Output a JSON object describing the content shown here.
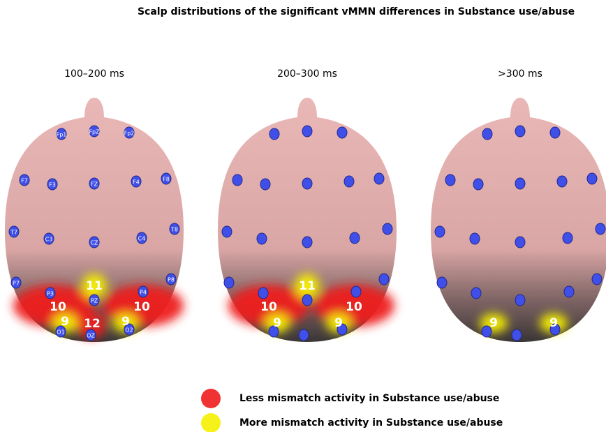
{
  "title": "Scalp distributions of the significant vMMN differences in Substance use/abuse",
  "panels": [
    {
      "label": "100–200 ms",
      "electrodes": [
        "Fp1",
        "FpZ",
        "Fp2",
        "F7",
        "F3",
        "FZ",
        "F4",
        "F8",
        "T7",
        "C3",
        "CZ",
        "C4",
        "T8",
        "P7",
        "P3",
        "PZ",
        "P4",
        "P8",
        "O1",
        "OZ",
        "O2"
      ],
      "blobs": [
        {
          "value": 10,
          "color": "#ee1c1c"
        },
        {
          "value": 10,
          "color": "#ee1c1c"
        },
        {
          "value": 12,
          "color": "#ee1c1c"
        },
        {
          "value": 11,
          "color": "#f5f000"
        },
        {
          "value": 9,
          "color": "#f5f000"
        },
        {
          "value": 9,
          "color": "#f5f000"
        }
      ]
    },
    {
      "label": "200–300 ms",
      "blobs": [
        {
          "value": 10,
          "color": "#ee1c1c"
        },
        {
          "value": 10,
          "color": "#ee1c1c"
        },
        {
          "value": 11,
          "color": "#f5f000"
        },
        {
          "value": 9,
          "color": "#f5f000"
        },
        {
          "value": 9,
          "color": "#f5f000"
        }
      ]
    },
    {
      "label": ">300 ms",
      "blobs": [
        {
          "value": 9,
          "color": "#f5f000"
        },
        {
          "value": 9,
          "color": "#f5f000"
        }
      ]
    }
  ],
  "legend": [
    {
      "label": "Less mismatch activity in Substance use/abuse",
      "color": "#ee1c1c"
    },
    {
      "label": "More mismatch activity  in Substance use/abuse",
      "color": "#f5f000"
    }
  ]
}
